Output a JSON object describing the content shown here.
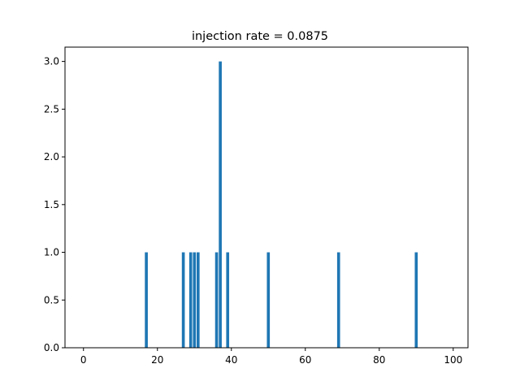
{
  "chart_data": {
    "type": "bar",
    "title": "injection rate = 0.0875",
    "xlabel": "",
    "ylabel": "",
    "xlim": [
      -5,
      104
    ],
    "ylim": [
      0,
      3.15
    ],
    "x_ticks": [
      0,
      20,
      40,
      60,
      80,
      100
    ],
    "x_tick_labels": [
      "0",
      "20",
      "40",
      "60",
      "80",
      "100"
    ],
    "y_ticks": [
      0,
      0.5,
      1,
      1.5,
      2,
      2.5,
      3
    ],
    "y_tick_labels": [
      "0.0",
      "0.5",
      "1.0",
      "1.5",
      "2.0",
      "2.5",
      "3.0"
    ],
    "bar_width": 0.8,
    "bar_color": "#1f77b4",
    "grid": false,
    "legend": "none",
    "x": [
      17,
      27,
      29,
      30,
      31,
      36,
      37,
      39,
      50,
      69,
      90
    ],
    "values": [
      1,
      1,
      1,
      1,
      1,
      1,
      3,
      1,
      1,
      1,
      1
    ]
  }
}
